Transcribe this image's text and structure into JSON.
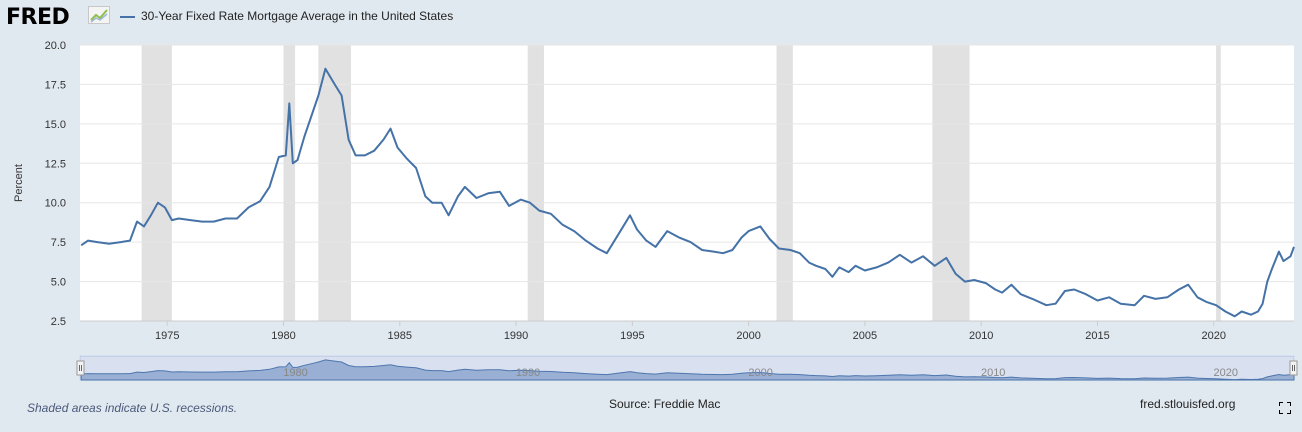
{
  "header": {
    "logo_text": "FRED",
    "logo_icon": "fred-chart-icon"
  },
  "colors": {
    "series": "#4572a7",
    "recession": "#e1e1e1",
    "background": "#e1e9f0",
    "plot_background": "#ffffff",
    "navigator_fill": "#8ea8cc"
  },
  "chart_data": {
    "type": "line",
    "xlabel": "",
    "ylabel": "Percent",
    "xlim": [
      1971.25,
      2023.45
    ],
    "ylim": [
      2.5,
      20.0
    ],
    "yticks": [
      "2.5",
      "5.0",
      "7.5",
      "10.0",
      "12.5",
      "15.0",
      "17.5",
      "20.0"
    ],
    "xticks": [
      "1975",
      "1980",
      "1985",
      "1990",
      "1995",
      "2000",
      "2005",
      "2010",
      "2015",
      "2020"
    ],
    "navigator_ticks": [
      "1980",
      "1990",
      "2000",
      "2010",
      "2020"
    ],
    "grid": true,
    "legend_position": "top-left",
    "series": [
      {
        "name": "30-Year Fixed Rate Mortgage Average in the United States",
        "x": [
          1971.3,
          1971.6,
          1972.0,
          1972.5,
          1973.0,
          1973.4,
          1973.7,
          1974.0,
          1974.3,
          1974.6,
          1974.9,
          1975.2,
          1975.5,
          1976.0,
          1976.5,
          1977.0,
          1977.5,
          1978.0,
          1978.5,
          1979.0,
          1979.4,
          1979.8,
          1980.1,
          1980.25,
          1980.4,
          1980.6,
          1980.9,
          1981.2,
          1981.5,
          1981.8,
          1982.2,
          1982.5,
          1982.8,
          1983.1,
          1983.5,
          1983.9,
          1984.3,
          1984.6,
          1984.9,
          1985.3,
          1985.7,
          1986.1,
          1986.4,
          1986.8,
          1987.1,
          1987.5,
          1987.8,
          1988.3,
          1988.8,
          1989.3,
          1989.7,
          1990.2,
          1990.6,
          1991.0,
          1991.5,
          1992.0,
          1992.5,
          1993.0,
          1993.5,
          1993.9,
          1994.4,
          1994.9,
          1995.2,
          1995.6,
          1996.0,
          1996.5,
          1997.0,
          1997.5,
          1998.0,
          1998.5,
          1998.9,
          1999.3,
          1999.7,
          2000.0,
          2000.5,
          2000.9,
          2001.3,
          2001.8,
          2002.2,
          2002.6,
          2002.9,
          2003.3,
          2003.6,
          2003.9,
          2004.3,
          2004.6,
          2005.0,
          2005.5,
          2006.0,
          2006.5,
          2007.0,
          2007.5,
          2008.0,
          2008.5,
          2008.9,
          2009.3,
          2009.7,
          2010.2,
          2010.6,
          2010.9,
          2011.3,
          2011.7,
          2012.2,
          2012.8,
          2013.2,
          2013.6,
          2014.0,
          2014.5,
          2015.0,
          2015.5,
          2016.0,
          2016.6,
          2017.0,
          2017.5,
          2018.0,
          2018.5,
          2018.9,
          2019.3,
          2019.7,
          2020.1,
          2020.5,
          2020.9,
          2021.2,
          2021.6,
          2021.9,
          2022.1,
          2022.3,
          2022.5,
          2022.8,
          2023.0,
          2023.3,
          2023.45
        ],
        "y": [
          7.3,
          7.6,
          7.5,
          7.4,
          7.5,
          7.6,
          8.8,
          8.5,
          9.2,
          10.0,
          9.7,
          8.9,
          9.0,
          8.9,
          8.8,
          8.8,
          9.0,
          9.0,
          9.7,
          10.1,
          11.0,
          12.9,
          13.0,
          16.3,
          12.5,
          12.7,
          14.2,
          15.5,
          16.8,
          18.5,
          17.5,
          16.8,
          14.0,
          13.0,
          13.0,
          13.3,
          14.0,
          14.7,
          13.5,
          12.8,
          12.2,
          10.4,
          10.0,
          10.0,
          9.2,
          10.4,
          11.0,
          10.3,
          10.6,
          10.7,
          9.8,
          10.2,
          10.0,
          9.5,
          9.3,
          8.6,
          8.2,
          7.6,
          7.1,
          6.8,
          8.0,
          9.2,
          8.3,
          7.6,
          7.2,
          8.2,
          7.8,
          7.5,
          7.0,
          6.9,
          6.8,
          7.0,
          7.8,
          8.2,
          8.5,
          7.7,
          7.1,
          7.0,
          6.8,
          6.2,
          6.0,
          5.8,
          5.3,
          5.9,
          5.6,
          6.0,
          5.7,
          5.9,
          6.2,
          6.7,
          6.2,
          6.6,
          6.0,
          6.5,
          5.5,
          5.0,
          5.1,
          4.9,
          4.5,
          4.3,
          4.8,
          4.2,
          3.9,
          3.5,
          3.6,
          4.4,
          4.5,
          4.2,
          3.8,
          4.0,
          3.6,
          3.5,
          4.1,
          3.9,
          4.0,
          4.5,
          4.8,
          4.0,
          3.7,
          3.5,
          3.1,
          2.8,
          3.1,
          2.9,
          3.1,
          3.6,
          5.0,
          5.8,
          6.9,
          6.3,
          6.6,
          7.2
        ]
      }
    ],
    "recessions": [
      [
        1973.9,
        1975.2
      ],
      [
        1980.0,
        1980.5
      ],
      [
        1981.5,
        1982.9
      ],
      [
        1990.5,
        1991.2
      ],
      [
        2001.2,
        2001.9
      ],
      [
        2007.9,
        2009.5
      ],
      [
        2020.1,
        2020.3
      ]
    ]
  },
  "footer": {
    "note": "Shaded areas indicate U.S. recessions.",
    "source": "Source: Freddie Mac",
    "site": "fred.stlouisfed.org"
  }
}
